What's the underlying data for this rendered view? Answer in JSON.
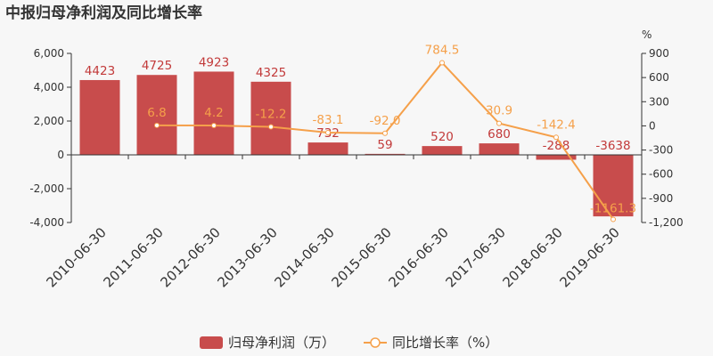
{
  "chart_data": {
    "type": "bar",
    "title": "中报归母净利润及同比增长率",
    "categories": [
      "2010-06-30",
      "2011-06-30",
      "2012-06-30",
      "2013-06-30",
      "2014-06-30",
      "2015-06-30",
      "2016-06-30",
      "2017-06-30",
      "2018-06-30",
      "2019-06-30"
    ],
    "series": [
      {
        "name": "归母净利润（万）",
        "type": "bar",
        "axis": "left",
        "values": [
          4423,
          4725,
          4923,
          4325,
          732,
          59,
          520,
          680,
          -288,
          -3638
        ],
        "labels": [
          "4423",
          "4725",
          "4923",
          "4325",
          "732",
          "59",
          "520",
          "680",
          "-288",
          "-3638"
        ]
      },
      {
        "name": "同比增长率（%）",
        "type": "line",
        "axis": "right",
        "values": [
          null,
          6.8,
          4.2,
          -12.2,
          -83.1,
          -92.0,
          784.5,
          30.9,
          -142.4,
          -1161.3
        ],
        "labels": [
          null,
          "6.8",
          "4.2",
          "-12.2",
          "-83.1",
          "-92.0",
          "784.5",
          "30.9",
          "-142.4",
          "-1161.3"
        ]
      }
    ],
    "y_left": {
      "ylim": [
        -4000,
        6000
      ],
      "ticks": [
        -4000,
        -2000,
        0,
        2000,
        4000,
        6000
      ],
      "tick_labels": [
        "-4,000",
        "-2,000",
        "0",
        "2,000",
        "4,000",
        "6,000"
      ]
    },
    "y_right": {
      "unit": "%",
      "ylim": [
        -1200,
        900
      ],
      "ticks": [
        -1200,
        -900,
        -600,
        -300,
        0,
        300,
        600,
        900
      ],
      "tick_labels": [
        "-1,200",
        "-900",
        "-600",
        "-300",
        "0",
        "300",
        "600",
        "900"
      ]
    },
    "legend": {
      "position": "bottom-center",
      "items": [
        "归母净利润（万）",
        "同比增长率（%）"
      ]
    },
    "grid": false,
    "colors": {
      "bar": "#c84c4c",
      "bar_label": "#c23a3a",
      "line": "#f5a04a",
      "line_label": "#f5a04a",
      "axis": "#333333",
      "background": "#f7f7f7"
    }
  }
}
